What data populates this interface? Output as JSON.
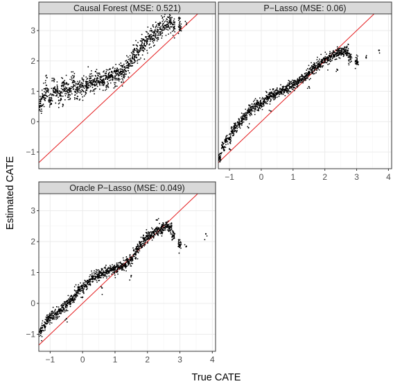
{
  "chart_data": {
    "type": "scatter",
    "xlabel": "True CATE",
    "ylabel": "Estimated CATE",
    "xlim": [
      -1.35,
      4.1
    ],
    "ylim": [
      -1.55,
      3.55
    ],
    "x_ticks": [
      "−1",
      "0",
      "1",
      "2",
      "3",
      "4"
    ],
    "y_ticks": [
      "−1",
      "0",
      "1",
      "2",
      "3"
    ],
    "x_tick_values": [
      -1,
      0,
      1,
      2,
      3,
      4
    ],
    "y_tick_values": [
      -1,
      0,
      1,
      2,
      3
    ],
    "reference_line": {
      "slope": 1,
      "intercept": 0,
      "color": "#e41a1c"
    },
    "point_color": "#000000",
    "grid": true,
    "panels": [
      {
        "title": "Causal Forest (MSE: 0.521)",
        "mse": 0.521,
        "points": [
          [
            -1.3,
            0.6
          ],
          [
            -1.2,
            0.8
          ],
          [
            -1.1,
            1.0
          ],
          [
            -1.0,
            0.7
          ],
          [
            -0.9,
            1.1
          ],
          [
            -0.8,
            1.0
          ],
          [
            -0.7,
            0.85
          ],
          [
            -0.6,
            1.2
          ],
          [
            -0.5,
            1.1
          ],
          [
            -0.4,
            1.0
          ],
          [
            -0.3,
            1.3
          ],
          [
            -0.2,
            1.05
          ],
          [
            -0.1,
            1.1
          ],
          [
            0.0,
            1.2
          ],
          [
            0.1,
            1.15
          ],
          [
            0.2,
            1.3
          ],
          [
            0.3,
            1.25
          ],
          [
            0.4,
            1.3
          ],
          [
            0.5,
            1.35
          ],
          [
            0.6,
            1.35
          ],
          [
            0.7,
            1.4
          ],
          [
            0.8,
            1.45
          ],
          [
            0.9,
            1.5
          ],
          [
            1.0,
            1.5
          ],
          [
            1.1,
            1.55
          ],
          [
            1.2,
            1.65
          ],
          [
            1.3,
            1.7
          ],
          [
            1.4,
            1.85
          ],
          [
            1.5,
            2.0
          ],
          [
            1.6,
            2.15
          ],
          [
            1.7,
            2.3
          ],
          [
            1.8,
            2.45
          ],
          [
            1.9,
            2.55
          ],
          [
            2.0,
            2.65
          ],
          [
            2.1,
            2.75
          ],
          [
            2.2,
            2.85
          ],
          [
            2.3,
            2.95
          ],
          [
            2.4,
            3.05
          ],
          [
            2.5,
            3.1
          ],
          [
            2.6,
            3.2
          ],
          [
            2.7,
            3.3
          ],
          [
            2.8,
            3.2
          ],
          [
            3.0,
            3.1
          ],
          [
            3.2,
            3.2
          ],
          [
            -1.1,
            1.45
          ],
          [
            -0.6,
            0.55
          ],
          [
            0.1,
            0.95
          ],
          [
            0.4,
            1.65
          ],
          [
            1.2,
            1.3
          ],
          [
            1.6,
            2.4
          ]
        ]
      },
      {
        "title": "P−Lasso (MSE: 0.06)",
        "mse": 0.06,
        "points": [
          [
            -1.3,
            -1.2
          ],
          [
            -1.2,
            -0.85
          ],
          [
            -1.1,
            -0.6
          ],
          [
            -1.0,
            -0.55
          ],
          [
            -0.9,
            -0.3
          ],
          [
            -0.8,
            -0.2
          ],
          [
            -0.7,
            -0.05
          ],
          [
            -0.6,
            0.1
          ],
          [
            -0.5,
            0.2
          ],
          [
            -0.4,
            0.35
          ],
          [
            -0.3,
            0.4
          ],
          [
            -0.2,
            0.5
          ],
          [
            -0.1,
            0.55
          ],
          [
            0.0,
            0.6
          ],
          [
            0.1,
            0.7
          ],
          [
            0.2,
            0.8
          ],
          [
            0.3,
            0.85
          ],
          [
            0.4,
            0.9
          ],
          [
            0.5,
            0.95
          ],
          [
            0.6,
            1.0
          ],
          [
            0.7,
            1.05
          ],
          [
            0.8,
            1.1
          ],
          [
            0.9,
            1.15
          ],
          [
            1.0,
            1.2
          ],
          [
            1.1,
            1.25
          ],
          [
            1.2,
            1.35
          ],
          [
            1.3,
            1.4
          ],
          [
            1.4,
            1.5
          ],
          [
            1.5,
            1.6
          ],
          [
            1.6,
            1.7
          ],
          [
            1.7,
            1.8
          ],
          [
            1.8,
            1.9
          ],
          [
            1.9,
            1.95
          ],
          [
            2.0,
            2.05
          ],
          [
            2.1,
            2.1
          ],
          [
            2.2,
            2.15
          ],
          [
            2.3,
            2.2
          ],
          [
            2.4,
            2.25
          ],
          [
            2.5,
            2.3
          ],
          [
            2.6,
            2.3
          ],
          [
            2.7,
            2.35
          ],
          [
            2.8,
            2.1
          ],
          [
            3.0,
            2.0
          ],
          [
            3.3,
            2.1
          ],
          [
            3.7,
            2.35
          ],
          [
            -1.0,
            -0.9
          ],
          [
            -0.4,
            -0.2
          ],
          [
            0.3,
            0.35
          ],
          [
            1.5,
            1.15
          ],
          [
            2.4,
            1.7
          ]
        ]
      },
      {
        "title": "Oracle P−Lasso (MSE: 0.049)",
        "mse": 0.049,
        "points": [
          [
            -1.3,
            -0.9
          ],
          [
            -1.2,
            -0.7
          ],
          [
            -1.1,
            -0.55
          ],
          [
            -1.0,
            -0.45
          ],
          [
            -0.9,
            -0.4
          ],
          [
            -0.8,
            -0.35
          ],
          [
            -0.7,
            -0.25
          ],
          [
            -0.6,
            -0.15
          ],
          [
            -0.5,
            -0.05
          ],
          [
            -0.4,
            0.05
          ],
          [
            -0.3,
            0.15
          ],
          [
            -0.2,
            0.3
          ],
          [
            -0.1,
            0.45
          ],
          [
            0.0,
            0.5
          ],
          [
            0.1,
            0.6
          ],
          [
            0.2,
            0.7
          ],
          [
            0.3,
            0.8
          ],
          [
            0.4,
            0.85
          ],
          [
            0.5,
            0.9
          ],
          [
            0.6,
            0.95
          ],
          [
            0.7,
            1.0
          ],
          [
            0.8,
            1.05
          ],
          [
            0.9,
            1.1
          ],
          [
            1.0,
            1.1
          ],
          [
            1.1,
            1.15
          ],
          [
            1.2,
            1.2
          ],
          [
            1.3,
            1.25
          ],
          [
            1.4,
            1.35
          ],
          [
            1.5,
            1.45
          ],
          [
            1.6,
            1.6
          ],
          [
            1.7,
            1.75
          ],
          [
            1.8,
            1.9
          ],
          [
            1.9,
            2.05
          ],
          [
            2.0,
            2.15
          ],
          [
            2.1,
            2.2
          ],
          [
            2.2,
            2.3
          ],
          [
            2.3,
            2.35
          ],
          [
            2.4,
            2.4
          ],
          [
            2.5,
            2.45
          ],
          [
            2.6,
            2.5
          ],
          [
            2.7,
            2.45
          ],
          [
            2.8,
            2.2
          ],
          [
            3.0,
            1.9
          ],
          [
            3.2,
            1.85
          ],
          [
            3.8,
            2.25
          ],
          [
            -0.5,
            -0.5
          ],
          [
            0.0,
            0.2
          ],
          [
            0.6,
            0.5
          ],
          [
            1.5,
            0.9
          ],
          [
            2.3,
            2.7
          ]
        ]
      }
    ]
  }
}
